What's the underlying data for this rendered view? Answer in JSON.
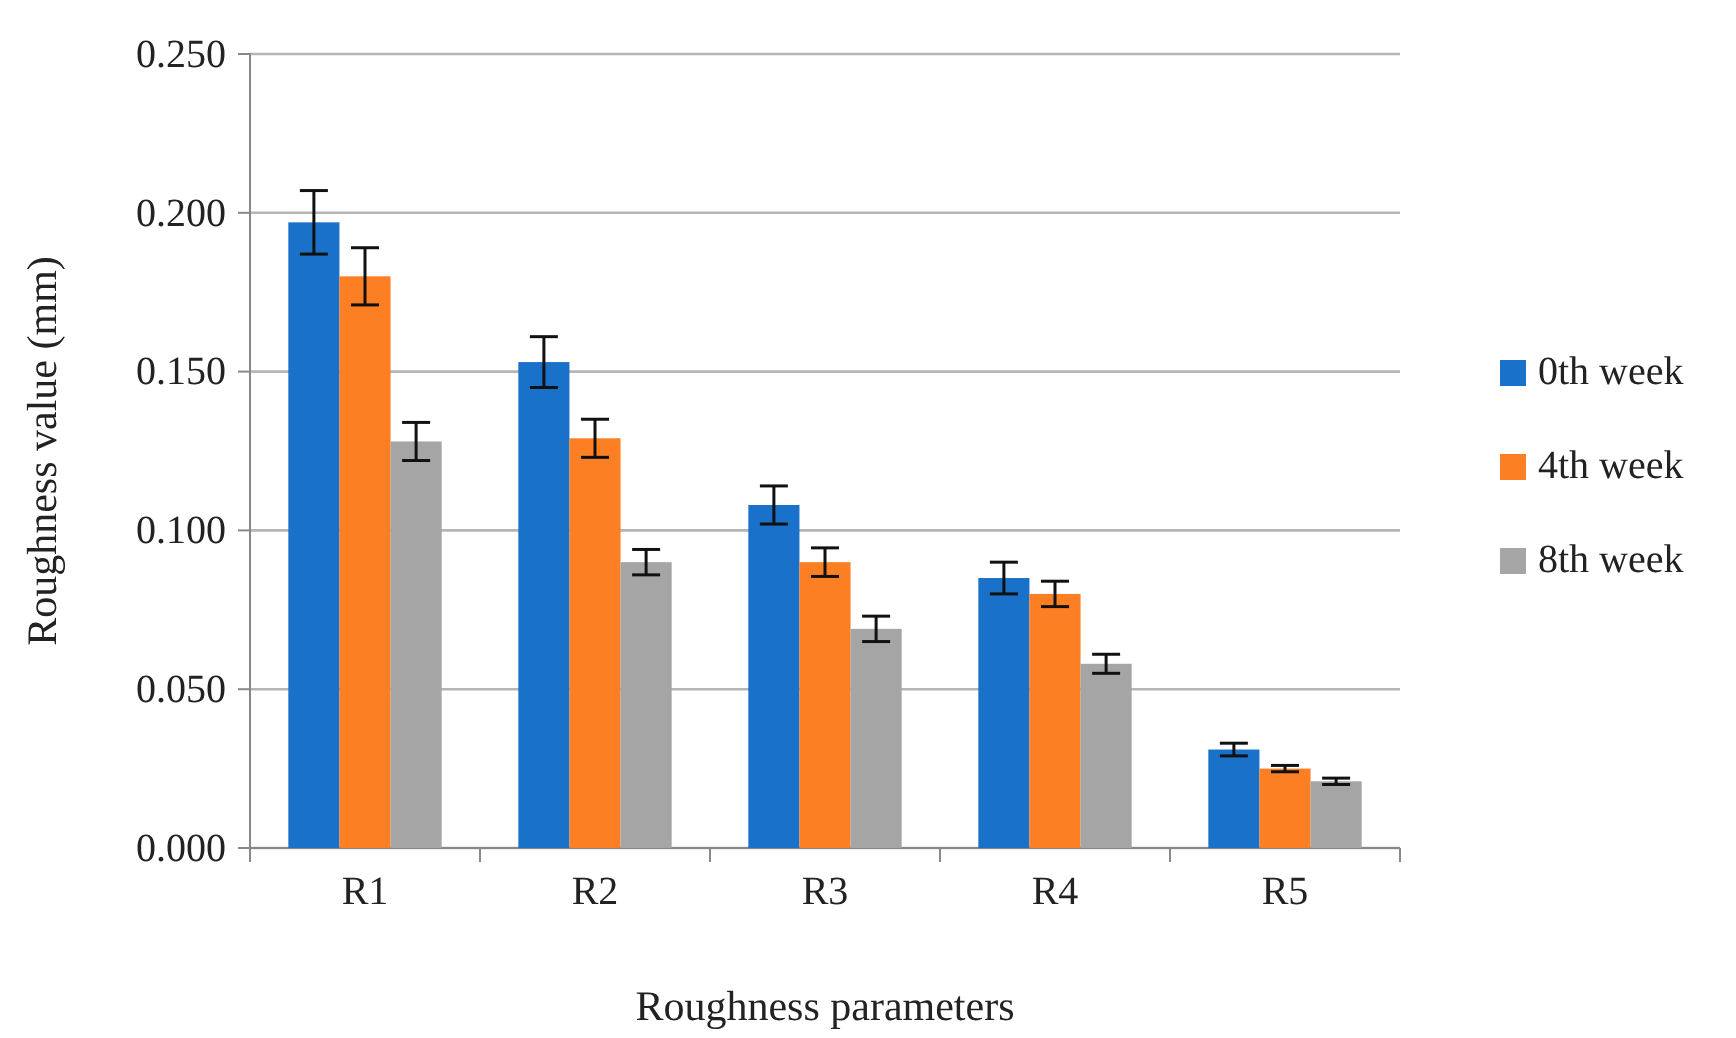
{
  "chart_data": {
    "type": "bar",
    "xlabel": "Roughness parameters",
    "ylabel": "Roughness value (mm)",
    "categories": [
      "R1",
      "R2",
      "R3",
      "R4",
      "R5"
    ],
    "series": [
      {
        "name": "0th week",
        "color": "#1a71c9",
        "values": [
          0.197,
          0.153,
          0.108,
          0.085,
          0.031
        ],
        "errors": [
          0.01,
          0.008,
          0.006,
          0.005,
          0.002
        ]
      },
      {
        "name": "4th week",
        "color": "#fd7f23",
        "values": [
          0.18,
          0.129,
          0.09,
          0.08,
          0.025
        ],
        "errors": [
          0.009,
          0.006,
          0.0045,
          0.004,
          0.001
        ]
      },
      {
        "name": "8th week",
        "color": "#a5a5a5",
        "values": [
          0.128,
          0.09,
          0.069,
          0.058,
          0.021
        ],
        "errors": [
          0.006,
          0.004,
          0.004,
          0.003,
          0.001
        ]
      }
    ],
    "ylim": [
      0,
      0.25
    ],
    "yticks": [
      {
        "value": 0,
        "label": "0.000"
      },
      {
        "value": 0.05,
        "label": "0.050"
      },
      {
        "value": 0.1,
        "label": "0.100"
      },
      {
        "value": 0.15,
        "label": "0.150"
      },
      {
        "value": 0.2,
        "label": "0.200"
      },
      {
        "value": 0.25,
        "label": "0.250"
      }
    ],
    "grid": "y",
    "legend": "right"
  }
}
